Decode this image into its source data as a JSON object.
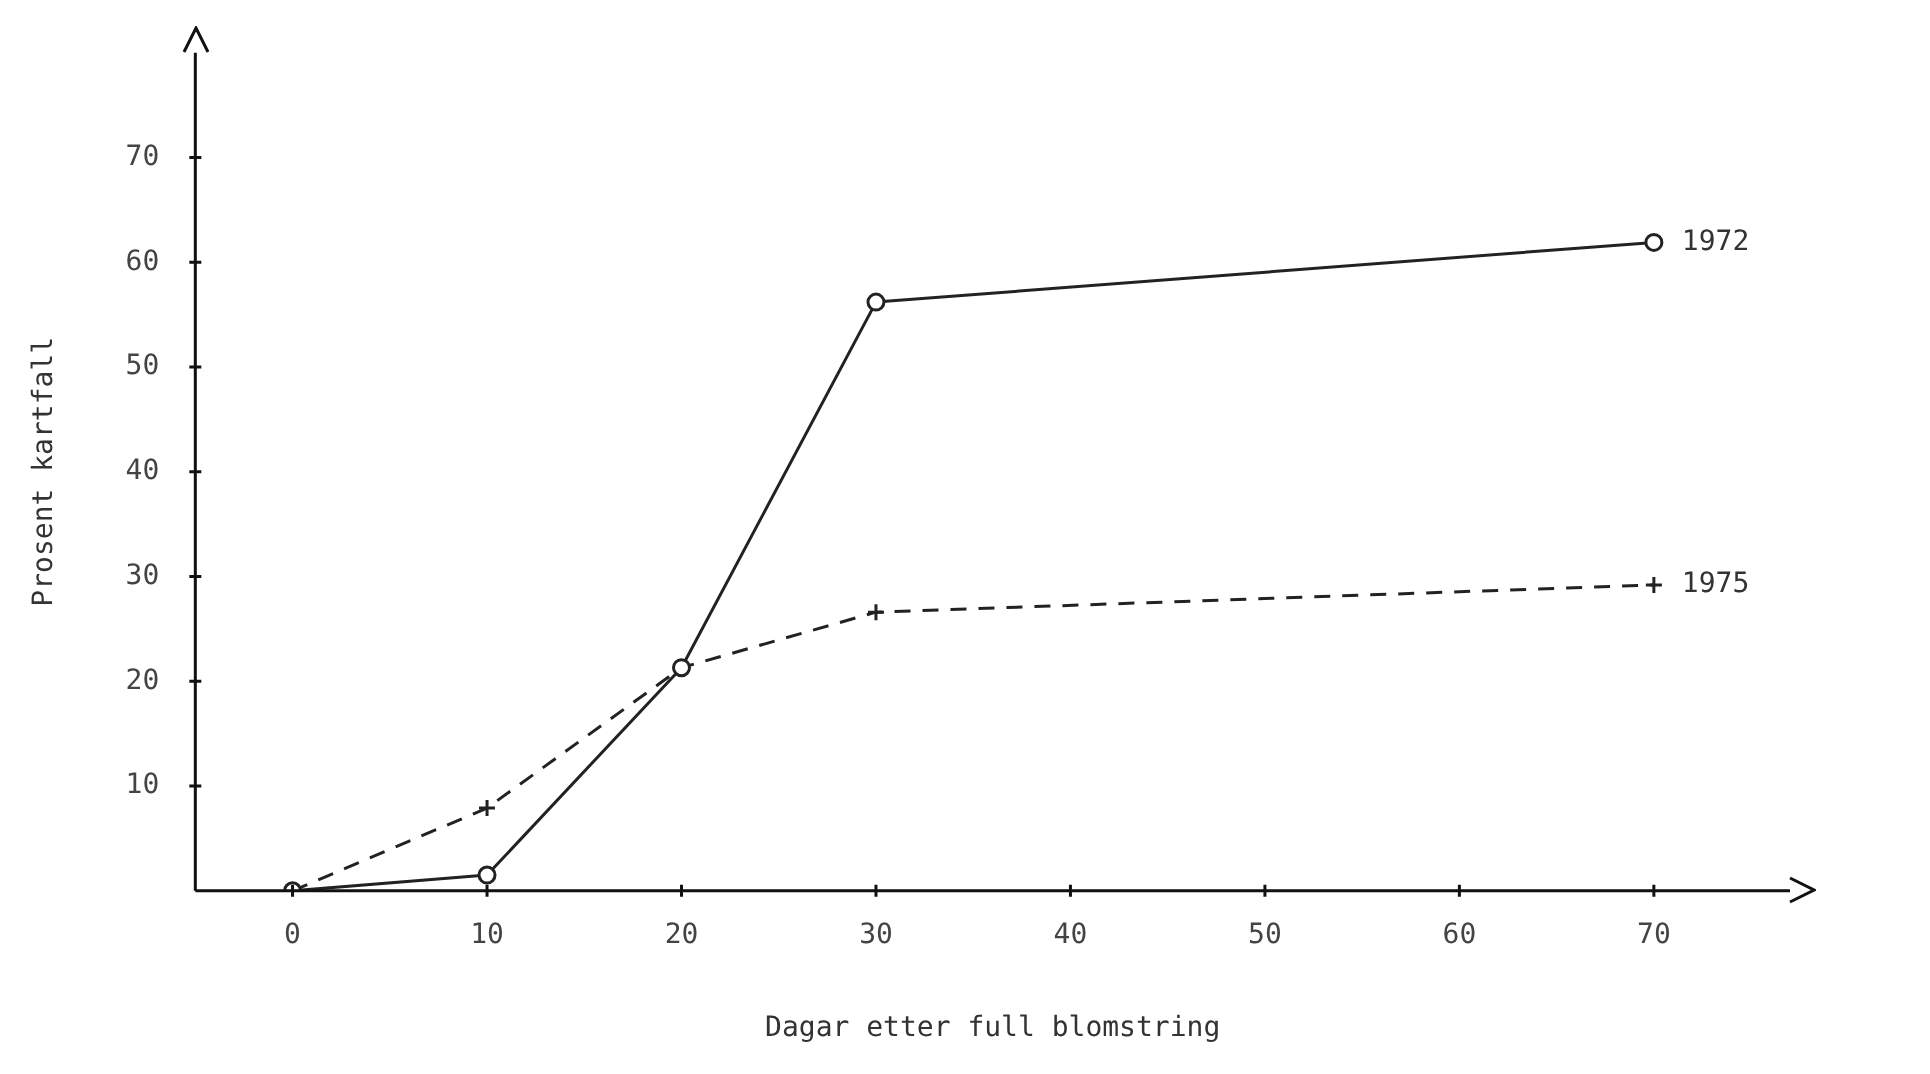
{
  "chart_data": {
    "type": "line",
    "xlabel": "Dagar etter full blomstring",
    "ylabel": "Prosent kartfall",
    "x": [
      0,
      10,
      20,
      30,
      70
    ],
    "series": [
      {
        "name": "1972",
        "color": "#222222",
        "values": [
          0,
          1.5,
          21.3,
          56.2,
          61.9
        ],
        "marker": "circle",
        "line_style": "solid"
      },
      {
        "name": "1975",
        "color": "#222222",
        "values": [
          0,
          7.9,
          21.3,
          26.6,
          29.2
        ],
        "marker": "cross",
        "line_style": "dashed"
      }
    ],
    "xlim": [
      -5,
      77
    ],
    "xticks": [
      0,
      10,
      20,
      30,
      40,
      50,
      60,
      70
    ],
    "ylim": [
      0,
      80
    ],
    "yticks": [
      10,
      20,
      30,
      40,
      50,
      60,
      70
    ],
    "grid": false,
    "legend": false
  }
}
